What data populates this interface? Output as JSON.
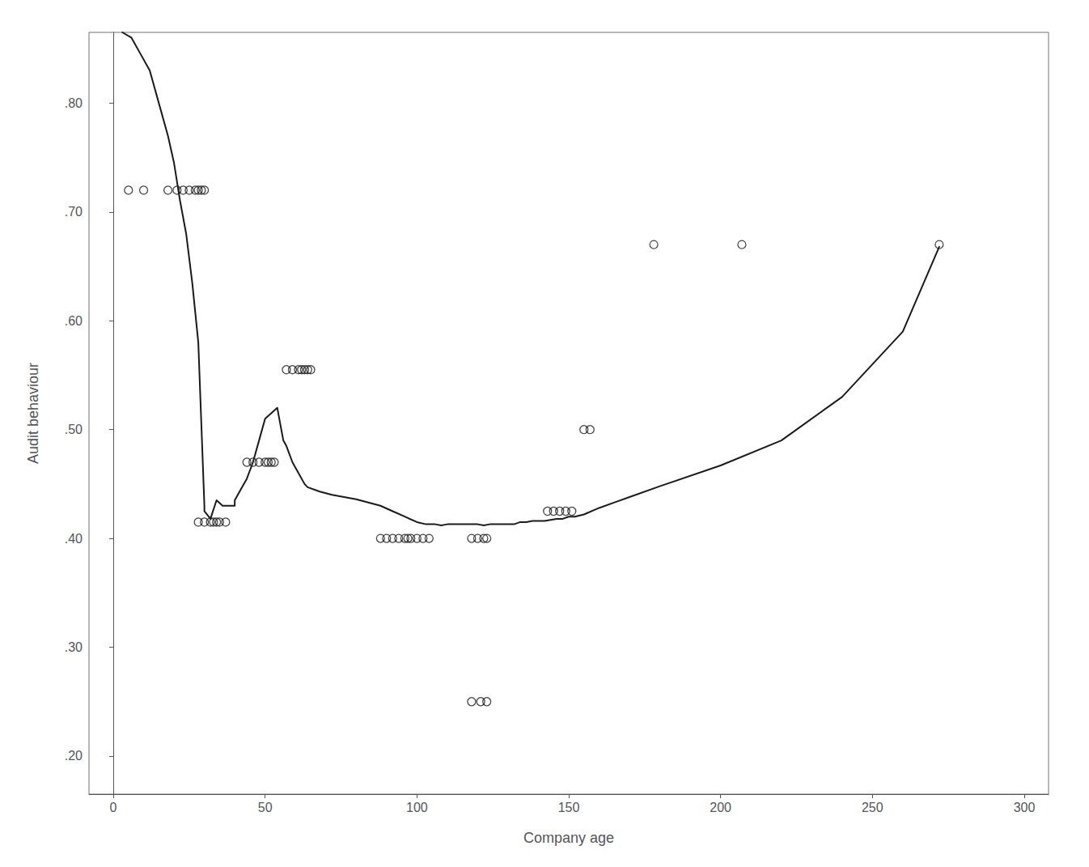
{
  "chart_data": {
    "type": "scatter",
    "xlabel": "Company age",
    "ylabel": "Audit behaviour",
    "xlim": [
      -8,
      308
    ],
    "ylim": [
      0.165,
      0.865
    ],
    "xticks": [
      0,
      50,
      100,
      150,
      200,
      250,
      300
    ],
    "yticks": [
      {
        "value": 0.2,
        "label": ".20"
      },
      {
        "value": 0.3,
        "label": ".30"
      },
      {
        "value": 0.4,
        "label": ".40"
      },
      {
        "value": 0.5,
        "label": ".50"
      },
      {
        "value": 0.6,
        "label": ".60"
      },
      {
        "value": 0.7,
        "label": ".70"
      },
      {
        "value": 0.8,
        "label": ".80"
      }
    ],
    "grid": false,
    "series": [
      {
        "type": "line",
        "color": "#1a1a1a",
        "x": [
          3,
          6,
          9,
          12,
          15,
          18,
          20,
          22,
          24,
          26,
          28,
          30,
          30,
          32,
          34,
          36,
          38,
          40,
          40,
          42,
          44,
          46,
          48,
          50,
          52,
          54,
          56,
          57,
          59,
          61,
          63,
          64,
          68,
          72,
          76,
          80,
          84,
          88,
          92,
          96,
          100,
          103,
          106,
          108,
          110,
          112,
          114,
          116,
          118,
          120,
          122,
          124,
          126,
          128,
          130,
          132,
          134,
          136,
          138,
          140,
          142,
          144,
          146,
          148,
          150,
          152,
          155,
          160,
          170,
          180,
          200,
          220,
          240,
          260,
          272
        ],
        "values": [
          0.865,
          0.86,
          0.845,
          0.83,
          0.8,
          0.77,
          0.745,
          0.71,
          0.68,
          0.635,
          0.58,
          0.43,
          0.425,
          0.418,
          0.435,
          0.43,
          0.43,
          0.43,
          0.435,
          0.445,
          0.455,
          0.47,
          0.49,
          0.51,
          0.515,
          0.52,
          0.49,
          0.485,
          0.47,
          0.46,
          0.45,
          0.447,
          0.443,
          0.44,
          0.438,
          0.436,
          0.433,
          0.43,
          0.425,
          0.42,
          0.415,
          0.413,
          0.413,
          0.412,
          0.413,
          0.413,
          0.413,
          0.413,
          0.413,
          0.413,
          0.412,
          0.413,
          0.413,
          0.413,
          0.413,
          0.413,
          0.415,
          0.415,
          0.416,
          0.416,
          0.416,
          0.417,
          0.418,
          0.418,
          0.42,
          0.42,
          0.422,
          0.428,
          0.438,
          0.448,
          0.467,
          0.49,
          0.53,
          0.59,
          0.668
        ]
      },
      {
        "type": "scatter",
        "color": "#1a1a1a",
        "marker": "circle",
        "x": [
          5,
          10,
          18,
          21,
          23,
          25,
          27,
          28,
          29,
          30,
          28,
          30,
          32,
          33,
          34,
          35,
          37,
          44,
          46,
          48,
          50,
          51,
          52,
          53,
          57,
          59,
          61,
          62,
          63,
          64,
          65,
          88,
          90,
          92,
          94,
          96,
          97,
          98,
          100,
          102,
          104,
          118,
          120,
          122,
          123,
          118,
          121,
          123,
          143,
          145,
          147,
          149,
          151,
          155,
          157,
          178,
          207,
          272
        ],
        "values": [
          0.72,
          0.72,
          0.72,
          0.72,
          0.72,
          0.72,
          0.72,
          0.72,
          0.72,
          0.72,
          0.415,
          0.415,
          0.415,
          0.415,
          0.415,
          0.415,
          0.415,
          0.47,
          0.47,
          0.47,
          0.47,
          0.47,
          0.47,
          0.47,
          0.555,
          0.555,
          0.555,
          0.555,
          0.555,
          0.555,
          0.555,
          0.4,
          0.4,
          0.4,
          0.4,
          0.4,
          0.4,
          0.4,
          0.4,
          0.4,
          0.4,
          0.4,
          0.4,
          0.4,
          0.4,
          0.25,
          0.25,
          0.25,
          0.425,
          0.425,
          0.425,
          0.425,
          0.425,
          0.5,
          0.5,
          0.67,
          0.67,
          0.67
        ]
      }
    ]
  }
}
